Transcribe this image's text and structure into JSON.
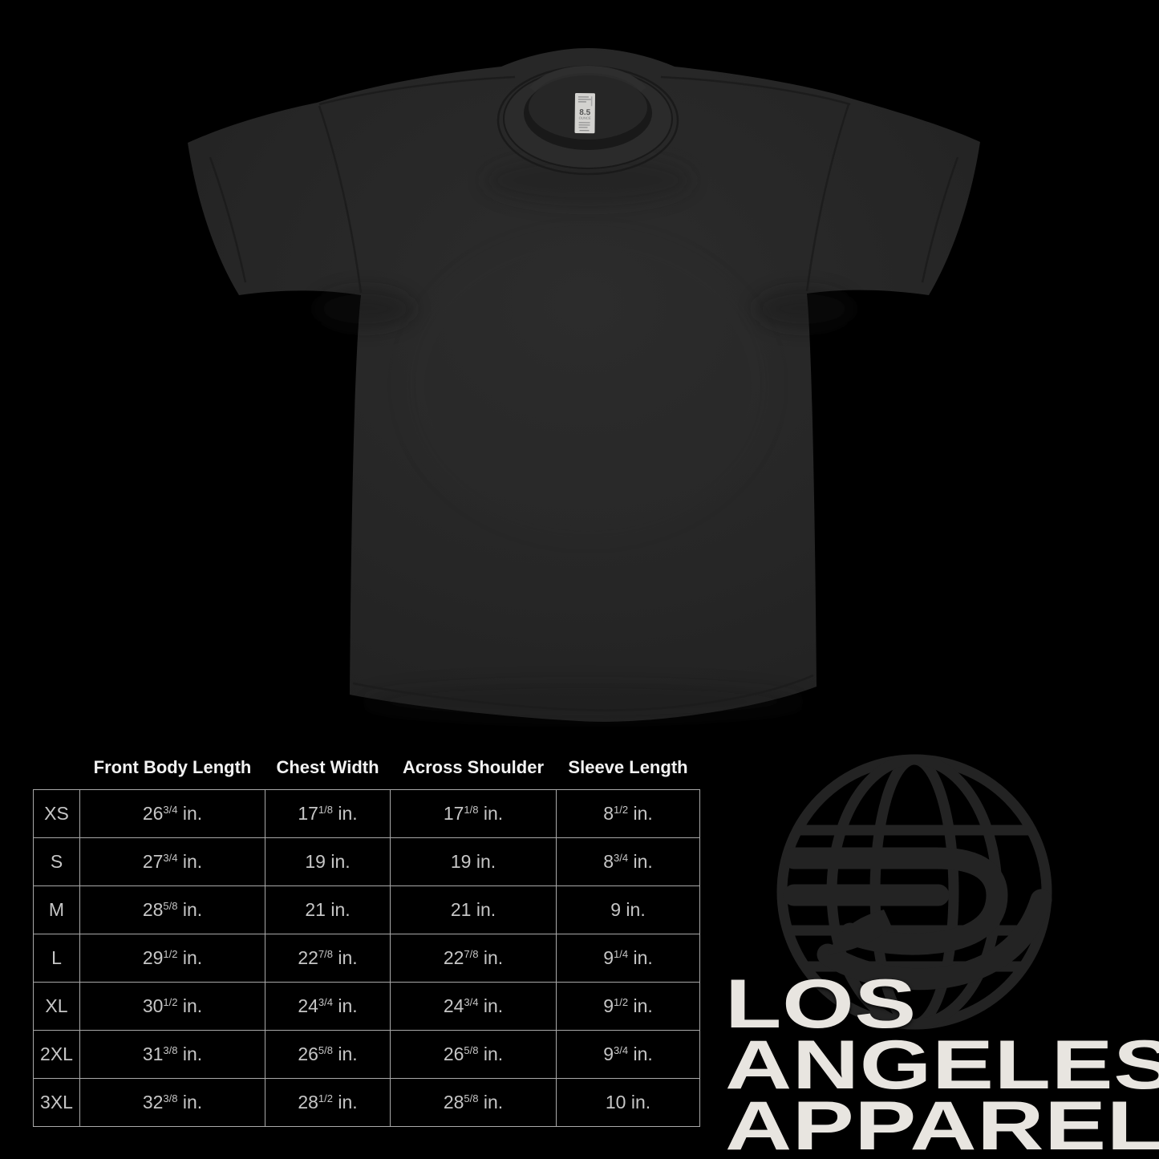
{
  "page": {
    "background_color": "#000000"
  },
  "product": {
    "description": "blank dark garment-dyed crew neck t-shirt, flat lay front view",
    "shirt_color": "#272727",
    "neck_label": {
      "weight_number": "8.5",
      "weight_unit": "OUNCE",
      "label_color": "#d3d2cf"
    }
  },
  "chart_data": {
    "type": "table",
    "title": "",
    "columns": [
      "Front Body Length",
      "Chest Width",
      "Across Shoulder",
      "Sleeve Length"
    ],
    "unit": "in.",
    "rows": [
      {
        "size": "XS",
        "values": [
          [
            "26",
            "3/4"
          ],
          [
            "17",
            "1/8"
          ],
          [
            "17",
            "1/8"
          ],
          [
            "8",
            "1/2"
          ]
        ]
      },
      {
        "size": "S",
        "values": [
          [
            "27",
            "3/4"
          ],
          [
            "19",
            ""
          ],
          [
            "19",
            ""
          ],
          [
            "8",
            "3/4"
          ]
        ]
      },
      {
        "size": "M",
        "values": [
          [
            "28",
            "5/8"
          ],
          [
            "21",
            ""
          ],
          [
            "21",
            ""
          ],
          [
            "9",
            ""
          ]
        ]
      },
      {
        "size": "L",
        "values": [
          [
            "29",
            "1/2"
          ],
          [
            "22",
            "7/8"
          ],
          [
            "22",
            "7/8"
          ],
          [
            "9",
            "1/4"
          ]
        ]
      },
      {
        "size": "XL",
        "values": [
          [
            "30",
            "1/2"
          ],
          [
            "24",
            "3/4"
          ],
          [
            "24",
            "3/4"
          ],
          [
            "9",
            "1/2"
          ]
        ]
      },
      {
        "size": "2XL",
        "values": [
          [
            "31",
            "3/8"
          ],
          [
            "26",
            "5/8"
          ],
          [
            "26",
            "5/8"
          ],
          [
            "9",
            "3/4"
          ]
        ]
      },
      {
        "size": "3XL",
        "values": [
          [
            "32",
            "3/8"
          ],
          [
            "28",
            "1/2"
          ],
          [
            "28",
            "5/8"
          ],
          [
            "10",
            ""
          ]
        ]
      }
    ],
    "layout": {
      "grid": true,
      "border_color": "#a9a9a9",
      "header_text_color": "#f2f2f2",
      "cell_text_color": "#c6c6c6"
    }
  },
  "logo": {
    "icon": "globe-eagle-monogram",
    "lines": [
      "LOS",
      "ANGELES",
      "APPAREL"
    ],
    "wordmark_color": "#e8e5e0",
    "globe_color": "#232323"
  }
}
